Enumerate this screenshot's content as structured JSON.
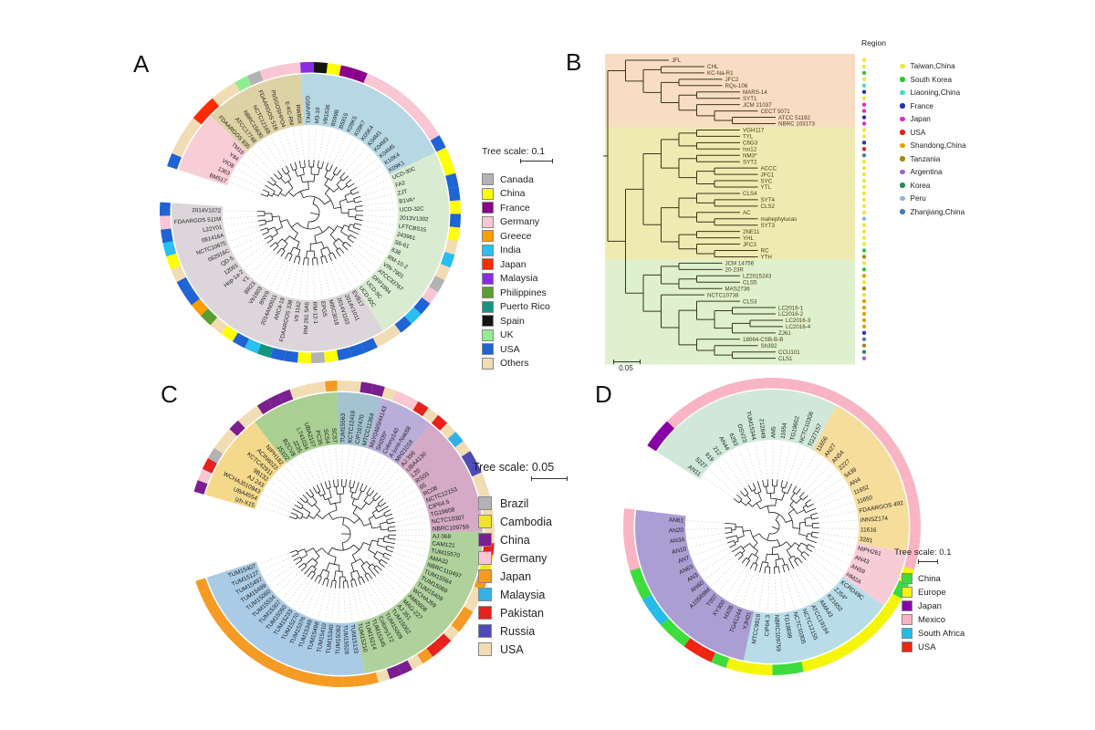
{
  "panels": {
    "a": {
      "letter": "A",
      "tree_scale": "Tree scale: 0.1",
      "sectors": [
        {
          "color": "#f8cdd6",
          "count": 5
        },
        {
          "color": "#ddd2a3",
          "count": 8
        },
        {
          "color": "#b6d7e4",
          "count": 13
        },
        {
          "color": "#d9ecd2",
          "count": 16
        },
        {
          "color": "#dcd6da",
          "count": 24
        }
      ],
      "leaves": [
        "BM517",
        "1363",
        "VIO8",
        "Y84",
        "TM19",
        "FDAARGOS 935",
        "ATCC17748",
        "NBRC15630",
        "NCTC12168",
        "FDAARGOS 519",
        "PbSGOSHPO4",
        "E-KC-RM",
        "RW80X",
        "GSMVPK1",
        "M3-10",
        "VB1636",
        "B599B",
        "B5915",
        "K09K5",
        "K09K7",
        "K05K4",
        "K04M1",
        "K04M3",
        "K04M5",
        "K10K4",
        "K09K1",
        "UCD-30C",
        "FA2",
        "ZJT",
        "B1VA*",
        "UCD-32C",
        "2013V1302",
        "LFTCBS15",
        "243961",
        "S6-61",
        "638",
        "RM-10-2",
        "VIN-7901",
        "ATCC33767",
        "DFP1994",
        "UCD-9C",
        "UCD-50C",
        "EVB17",
        "2014V1011",
        "2014V1102",
        "MI5C3018",
        "EPGS",
        "RM-12-1",
        "RM 261 SA5",
        "V9 1162",
        "FDAARGOS 338",
        "ANC4-18",
        "2014AN0011",
        "BNY9",
        "Vb1603",
        "BR23",
        "Y1",
        "Hep-1a-2",
        "12001",
        "QD-5",
        "062916C",
        "NCTC10675",
        "081416A",
        "L22Y01",
        "FDAARGOS 511M",
        "2014V1072"
      ],
      "ring": [
        "#1f63d4",
        "#f2dcb3",
        "#f2dcb3",
        "#f2dcb3",
        "#ff2a00",
        "#ff2a00",
        "#f2dcb3",
        "#f2dcb3",
        "#90ee90",
        "#b3b3b3",
        "#f9c6d3",
        "#f9c6d3",
        "#f9c6d3",
        "#8a2be2",
        "#141414",
        "#ffff00",
        "#8b008b",
        "#8b008b",
        "#f9c6d3",
        "#f9c6d3",
        "#f9c6d3",
        "#f9c6d3",
        "#f9c6d3",
        "#f9c6d3",
        "#f9c6d3",
        "#1f63d4",
        "#ffff00",
        "#ffff00",
        "#1f63d4",
        "#1f63d4",
        "#ffff00",
        "#1f63d4",
        "#ffff00",
        "#f2dcb3",
        "#27c0f0",
        "#f2dcb3",
        "#b3b3b3",
        "#f9c6d3",
        "#1f63d4",
        "#27c0f0",
        "#1f63d4",
        "#f2dcb3",
        "#f2dcb3",
        "#1f63d4",
        "#1f63d4",
        "#1f63d4",
        "#ffff00",
        "#b3b3b3",
        "#ffff00",
        "#1f63d4",
        "#1f63d4",
        "#13957f",
        "#27c0f0",
        "#1f63d4",
        "#ffff00",
        "#f2dcb3",
        "#5a9e32",
        "#ff9d00",
        "#1f63d4",
        "#1f63d4",
        "#f2dcb3",
        "#ffff00",
        "#27c0f0",
        "#1f63d4",
        "#f9c6d3",
        "#1f63d4"
      ],
      "legend": [
        {
          "label": "Canada",
          "color": "#b3b3b3"
        },
        {
          "label": "China",
          "color": "#ffff00"
        },
        {
          "label": "France",
          "color": "#8b008b"
        },
        {
          "label": "Germany",
          "color": "#f9c6d3"
        },
        {
          "label": "Greece",
          "color": "#ff9d00"
        },
        {
          "label": "India",
          "color": "#27c0f0"
        },
        {
          "label": "Japan",
          "color": "#ff2a00"
        },
        {
          "label": "Malaysia",
          "color": "#8a2be2"
        },
        {
          "label": "Philippines",
          "color": "#5a9e32"
        },
        {
          "label": "Puerto Rico",
          "color": "#13957f"
        },
        {
          "label": "Spain",
          "color": "#141414"
        },
        {
          "label": "UK",
          "color": "#90ee90"
        },
        {
          "label": "USA",
          "color": "#1f63d4"
        },
        {
          "label": "Others",
          "color": "#f2dcb3"
        }
      ]
    },
    "b": {
      "letter": "B",
      "region_label": "Region",
      "scale_label": "0.05",
      "bands": [
        {
          "color": "#f8dcc3",
          "count": 11
        },
        {
          "color": "#eeeab2",
          "count": 21
        },
        {
          "color": "#def0cd",
          "count": 16
        }
      ],
      "taxa": [
        "JFL",
        "CHL",
        "KC-Na-R1",
        "JFC2",
        "RQs-106",
        "MARS-14",
        "SYT1",
        "JCM 21037",
        "CECT 5071",
        "ATCC 51192",
        "NBRC 103173",
        "VGH117",
        "TYL",
        "C6G3",
        "Iso12",
        "NM3*",
        "SYT2",
        "ACCC",
        "JFC1",
        "SYC",
        "YTL",
        "CLS4",
        "SYT4",
        "CLS2",
        "AC",
        "mahephylucas",
        "SYT3",
        "2NE11",
        "YHL",
        "JFC3",
        "RC",
        "YTH",
        "JCM 14756",
        "20-23R",
        "LZ2015243",
        "CLS5",
        "MAS2736",
        "NCTC10738",
        "CLS3",
        "LC2016-1",
        "LC2016-2",
        "LC2016-3",
        "LC2016-4",
        "ZJ61",
        "18064-CSB-B-B",
        "Sh392",
        "CCU101",
        "CLS1"
      ],
      "dots": [
        "#f0e442",
        "#f0e442",
        "#35c435",
        "#f0e442",
        "#40dcd0",
        "#2233bb",
        "#f0e442",
        "#e627c6",
        "#e627c6",
        "#2233bb",
        "#e627c6",
        "#f0e442",
        "#f0e442",
        "#2233bb",
        "#e02020",
        "#4a7ab5",
        "#f0e442",
        "#f0e442",
        "#f0e442",
        "#f0e442",
        "#f0e442",
        "#f0e442",
        "#f0e442",
        "#f0e442",
        "#f0e442",
        "#8fb3e0",
        "#f0e442",
        "#f0e442",
        "#f0e442",
        "#f0e442",
        "#35c435",
        "#a8860b",
        "#f0e442",
        "#35c435",
        "#e69f00",
        "#f0e442",
        "#a8860b",
        "#f0e442",
        "#e69f00",
        "#e69f00",
        "#e69f00",
        "#e69f00",
        "#e69f00",
        "#2233bb",
        "#4a7ab5",
        "#a8860b",
        "#2e8b57",
        "#9966cc"
      ],
      "tree": [
        [
          "JFL",
          [
            [
              "CHL",
              "KC-Na-R1"
            ],
            [
              [
                "JFC2",
                "RQs-106"
              ],
              [
                [
                  "MARS-14",
                  "SYT1"
                ],
                [
                  "JCM 21037",
                  [
                    "CECT 5071",
                    [
                      "ATCC 51192",
                      "NBRC 103173"
                    ]
                  ]
                ]
              ]
            ]
          ]
        ],
        [
          [
            [
              [
                [
                  "VGH117",
                  "TYL"
                ],
                [
                  "C6G3",
                  "Iso12"
                ]
              ],
              [
                [
                  "NM3*",
                  "SYT2"
                ],
                [
                  [
                    "ACCC",
                    "JFC1"
                  ],
                  [
                    "SYC",
                    "YTL"
                  ]
                ]
              ]
            ],
            [
              [
                [
                  "CLS4",
                  [
                    "SYT4",
                    "CLS2"
                  ]
                ],
                [
                  "AC",
                  [
                    "mahephylucas",
                    "SYT3"
                  ]
                ]
              ],
              [
                [
                  "2NE11",
                  "YHL"
                ],
                [
                  "JFC3",
                  [
                    "RC",
                    "YTH"
                  ]
                ]
              ]
            ]
          ],
          [
            [
              [
                "JCM 14756",
                "20-23R"
              ],
              [
                [
                  "LZ2015243",
                  "CLS5"
                ],
                "MAS2736"
              ]
            ],
            [
              "NCTC10738",
              [
                [
                  "CLS3",
                  [
                    [
                      "LC2016-1",
                      "LC2016-2"
                    ],
                    [
                      [
                        "LC2016-3",
                        "LC2016-4"
                      ],
                      "ZJ61"
                    ]
                  ]
                ],
                [
                  "18064-CSB-B-B",
                  [
                    "Sh392",
                    [
                      "CCU101",
                      "CLS1"
                    ]
                  ]
                ]
              ]
            ]
          ]
        ]
      ],
      "legend": [
        {
          "label": "Taiwan,China",
          "color": "#f0e442"
        },
        {
          "label": "South Korea",
          "color": "#35c435"
        },
        {
          "label": "Liaoning,China",
          "color": "#40dcd0"
        },
        {
          "label": "France",
          "color": "#2233bb"
        },
        {
          "label": "Japan",
          "color": "#e627c6"
        },
        {
          "label": "USA",
          "color": "#e02020"
        },
        {
          "label": "Shandong,China",
          "color": "#e69f00"
        },
        {
          "label": "Tanzania",
          "color": "#a8860b"
        },
        {
          "label": "Argentina",
          "color": "#9966cc"
        },
        {
          "label": "Korea",
          "color": "#2e8b57"
        },
        {
          "label": "Peru",
          "color": "#8fb3e0"
        },
        {
          "label": "Zhanjiang,China",
          "color": "#4a7ab5"
        }
      ]
    },
    "c": {
      "letter": "C",
      "tree_scale": "Tree scale: 0.05",
      "sectors": [
        {
          "color": "#f4d98c",
          "count": 8
        },
        {
          "color": "#a9cf92",
          "count": 8
        },
        {
          "color": "#a2c3cf",
          "count": 4
        },
        {
          "color": "#b9aed9",
          "count": 5
        },
        {
          "color": "#d4aac6",
          "count": 11
        },
        {
          "color": "#afd29c",
          "count": 18
        },
        {
          "color": "#a9cbe6",
          "count": 18
        }
      ],
      "leaves": [
        "Izh-X15",
        "UBA4554",
        "WCHAJ010943",
        "AJ 243",
        "9B132",
        "KCTC42911",
        "ACIN6023",
        "NIPH182",
        "JS102",
        "BZCV8",
        "JZ35",
        "L741034",
        "UBA2107",
        "PC35",
        "SC54",
        "SC57",
        "TUM15563",
        "KCTC12416",
        "CIP107470",
        "MTCC11364",
        "MaY049SH4143",
        "SH205*",
        "Colony140",
        "A-junii-Nak88",
        "MH21018",
        "AJ 356",
        "UBA4130",
        "L20",
        "RS03",
        "65",
        "RC08",
        "NCTC12153",
        "CIP64.5",
        "TG19608",
        "NCTC10307",
        "NBRC109759",
        "AJ 068",
        "CAM121",
        "TUM15570",
        "AMA32",
        "NBRC110497",
        "TUM15564",
        "TUM15069",
        "TUM15409",
        "WCHAJ59",
        "AMi0608",
        "MAG-227",
        "AJ 351",
        "TUM15062",
        "TUM15009",
        "Colony172",
        "TUM15345",
        "TUM15214",
        "TUM15210",
        "TUM15133",
        "TUM15528",
        "TUM15092",
        "TUM15340",
        "TUM15410",
        "TUM15498",
        "TUM15349",
        "TUM15376",
        "TUM15270",
        "TUM15233",
        "TUM15050",
        "TUM15307",
        "TUM15534",
        "TUM15060",
        "TUM15499",
        "TUM15497",
        "TUM15127",
        "TUM15407"
      ],
      "ring": [
        "#7a1f8f",
        "#f9c6d3",
        "#e8211d",
        "#b3b3b3",
        "#f2dcb3",
        "#f2dcb3",
        "#7a1f8f",
        "#f2dcb3",
        "#f2dcb3",
        "#7a1f8f",
        "#7a1f8f",
        "#7a1f8f",
        "#f2dcb3",
        "#f2dcb3",
        "#f2dcb3",
        "#f59a23",
        "#f2dcb3",
        "#f2dcb3",
        "#7a1f8f",
        "#7a1f8f",
        "#f2dcb3",
        "#f9c6d3",
        "#f9c6d3",
        "#e8211d",
        "#f2dcb3",
        "#e8211d",
        "#f2dcb3",
        "#35b1e8",
        "#f2dcb3",
        "#4d49b8",
        "#4d49b8",
        "#f2dcb3",
        "#f2dcb3",
        "#f2dcb3",
        "#f2dcb3",
        "#f2dcb3",
        "#f2dcb3",
        "#e8211d",
        "#f2e22e",
        "#f2e22e",
        "#f59a23",
        "#f2dcb3",
        "#f2dcb3",
        "#f59a23",
        "#f59a23",
        "#f2dcb3",
        "#e8211d",
        "#e8211d",
        "#f59a23",
        "#f2dcb3",
        "#7a1f8f",
        "#7a1f8f",
        "#f2dcb3",
        "#f59a23",
        "#f59a23",
        "#f59a23",
        "#f59a23",
        "#f59a23",
        "#f59a23",
        "#f59a23",
        "#f59a23",
        "#f59a23",
        "#f59a23",
        "#f59a23",
        "#f59a23",
        "#f59a23",
        "#f59a23",
        "#f59a23",
        "#f59a23",
        "#f59a23",
        "#f59a23",
        "#f59a23"
      ],
      "legend": [
        {
          "label": "Brazil",
          "color": "#b3b3b3"
        },
        {
          "label": "Cambodia",
          "color": "#f2e22e"
        },
        {
          "label": "China",
          "color": "#7a1f8f"
        },
        {
          "label": "Germany",
          "color": "#f9c6d3"
        },
        {
          "label": "Japan",
          "color": "#f59a23"
        },
        {
          "label": "Malaysia",
          "color": "#35b1e8"
        },
        {
          "label": "Pakistan",
          "color": "#e8211d"
        },
        {
          "label": "Russia",
          "color": "#4d49b8"
        },
        {
          "label": "USA",
          "color": "#f2dcb3"
        }
      ]
    },
    "d": {
      "letter": "D",
      "tree_scale": "Tree scale: 0.1",
      "sectors": [
        {
          "color": "#cfe8d9",
          "count": 14
        },
        {
          "color": "#f6dd9b",
          "count": 12
        },
        {
          "color": "#f8ccd6",
          "count": 4
        },
        {
          "color": "#b8dde9",
          "count": 11
        },
        {
          "color": "#ab9ed3",
          "count": 14
        }
      ],
      "leaves": [
        "AN11",
        "5227",
        "919",
        "212",
        "AN44",
        "6293",
        "DSV23",
        "TUM15344",
        "212649",
        "AN5",
        "11654",
        "TG19602",
        "NCTC10306",
        "TG27157",
        "11656",
        "AN27",
        "AN54",
        "2227",
        "5439",
        "AN4",
        "11652",
        "11650",
        "FDAARGOS 492",
        "INNSZ174",
        "11616",
        "3281",
        "NIPH261",
        "AN43",
        "AN59",
        "HM2A",
        "KCRD49C",
        "ZJ54*",
        "K21652",
        "AMA43",
        "ATCC19194",
        "NCTC12155",
        "NCTC10305",
        "TG18699",
        "NBRC109759",
        "CIP64.3",
        "MTCC9818",
        "YJH01",
        "TG41244",
        "HX05",
        "XY300",
        "T007",
        "A105R8M",
        "AN60",
        "AN3",
        "AN63",
        "AN7",
        "AN10",
        "AN34",
        "AN20",
        "AN61"
      ],
      "ring": [
        "#8800a8",
        "#8800a8",
        "#f9b4c4",
        "#f9b4c4",
        "#f9b4c4",
        "#f9b4c4",
        "#f9b4c4",
        "#f9b4c4",
        "#f9b4c4",
        "#f9b4c4",
        "#f9b4c4",
        "#f9b4c4",
        "#f9b4c4",
        "#f9b4c4",
        "#f9b4c4",
        "#f9b4c4",
        "#f9b4c4",
        "#f9b4c4",
        "#f9b4c4",
        "#f9b4c4",
        "#f9b4c4",
        "#f9b4c4",
        "#f9b4c4",
        "#f9b4c4",
        "#f9b4c4",
        "#f9b4c4",
        "#f9b4c4",
        "#f5f50a",
        "#3ddc3d",
        "#f5f50a",
        "#f5f50a",
        "#f5f50a",
        "#f5f50a",
        "#f5f50a",
        "#f5f50a",
        "#f5f50a",
        "#f5f50a",
        "#3ddc3d",
        "#3ddc3d",
        "#f5f50a",
        "#f5f50a",
        "#f5f50a",
        "#3ddc3d",
        "#ee2413",
        "#ee2413",
        "#3ddc3d",
        "#3ddc3d",
        "#25bce8",
        "#25bce8",
        "#3ddc3d",
        "#3ddc3d",
        "#f9b4c4",
        "#f9b4c4",
        "#f9b4c4",
        "#f9b4c4"
      ],
      "legend": [
        {
          "label": "China",
          "color": "#3ddc3d"
        },
        {
          "label": "Europe",
          "color": "#f5f50a"
        },
        {
          "label": "Japan",
          "color": "#8800a8"
        },
        {
          "label": "Mexico",
          "color": "#f9b4c4"
        },
        {
          "label": "South Africa",
          "color": "#25bce8"
        },
        {
          "label": "USA",
          "color": "#ee2413"
        }
      ]
    }
  }
}
